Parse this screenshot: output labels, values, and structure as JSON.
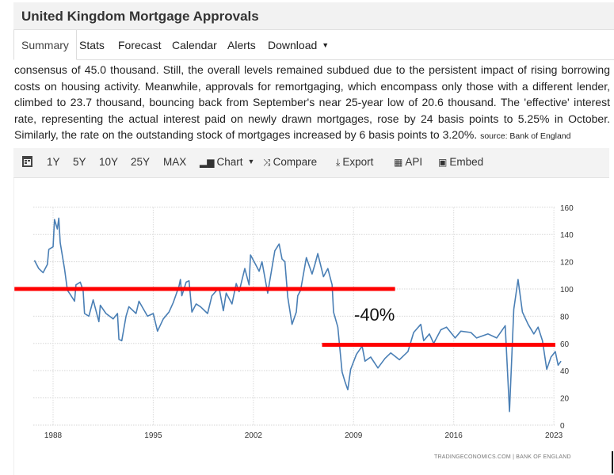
{
  "header": {
    "title": "United Kingdom Mortgage Approvals"
  },
  "tabs": [
    {
      "label": "Summary",
      "active": true
    },
    {
      "label": "Stats"
    },
    {
      "label": "Forecast"
    },
    {
      "label": "Calendar"
    },
    {
      "label": "Alerts"
    },
    {
      "label": "Download",
      "dropdown": true
    }
  ],
  "summary": {
    "text": "consensus of 45.0 thousand. Still, the overall levels remained subdued due to the persistent impact of rising borrowing costs on housing activity. Meanwhile, approvals for remortgaging, which encompass only those with a different lender, climbed to 23.7 thousand, bouncing back from September's near 25-year low of 20.6 thousand. The 'effective' interest rate, representing the actual interest paid on newly drawn mortgages, rose by 24 basis points to 5.25% in October. Similarly, the rate on the outstanding stock of mortgages increased by 6 basis points to 3.20%.",
    "source": "source: Bank of England"
  },
  "toolbar": {
    "calendar_icon": "calendar-icon",
    "ranges": [
      "1Y",
      "5Y",
      "10Y",
      "25Y",
      "MAX"
    ],
    "chart_label": "Chart",
    "compare_label": "Compare",
    "export_label": "Export",
    "api_label": "API",
    "embed_label": "Embed"
  },
  "chart_data": {
    "type": "line",
    "title": "",
    "xlabel": "",
    "ylabel": "",
    "x_ticks": [
      "1988",
      "1995",
      "2002",
      "2009",
      "2016",
      "2023"
    ],
    "y_ticks": [
      "0",
      "20",
      "40",
      "60",
      "80",
      "100",
      "120",
      "140",
      "160"
    ],
    "ylim": [
      0,
      160
    ],
    "xlim": [
      1986.5,
      2023.6
    ],
    "grid": true,
    "y_axis_side": "right",
    "line_color": "#4a7fb5",
    "footer": "TRADINGECONOMICS.COM | BANK OF ENGLAND",
    "series": [
      {
        "points": [
          [
            1986.7,
            121
          ],
          [
            1987.0,
            115
          ],
          [
            1987.3,
            112
          ],
          [
            1987.6,
            118
          ],
          [
            1987.7,
            129
          ],
          [
            1988.0,
            131
          ],
          [
            1988.1,
            151
          ],
          [
            1988.3,
            144
          ],
          [
            1988.4,
            152
          ],
          [
            1988.5,
            134
          ],
          [
            1988.8,
            115
          ],
          [
            1989.0,
            99
          ],
          [
            1989.2,
            96
          ],
          [
            1989.5,
            91
          ],
          [
            1989.6,
            103
          ],
          [
            1989.9,
            105
          ],
          [
            1990.1,
            99
          ],
          [
            1990.2,
            82
          ],
          [
            1990.5,
            80
          ],
          [
            1990.8,
            92
          ],
          [
            1991.2,
            76
          ],
          [
            1991.3,
            88
          ],
          [
            1991.7,
            82
          ],
          [
            1992.2,
            78
          ],
          [
            1992.5,
            82
          ],
          [
            1992.6,
            63
          ],
          [
            1992.8,
            62
          ],
          [
            1993.1,
            80
          ],
          [
            1993.3,
            87
          ],
          [
            1993.8,
            82
          ],
          [
            1994.0,
            91
          ],
          [
            1994.6,
            80
          ],
          [
            1995.0,
            82
          ],
          [
            1995.3,
            69
          ],
          [
            1995.7,
            78
          ],
          [
            1996.1,
            83
          ],
          [
            1996.4,
            90
          ],
          [
            1996.8,
            102
          ],
          [
            1996.9,
            107
          ],
          [
            1997.0,
            95
          ],
          [
            1997.3,
            105
          ],
          [
            1997.5,
            106
          ],
          [
            1997.7,
            83
          ],
          [
            1998.0,
            89
          ],
          [
            1998.3,
            87
          ],
          [
            1998.8,
            82
          ],
          [
            1999.1,
            95
          ],
          [
            1999.6,
            101
          ],
          [
            1999.9,
            84
          ],
          [
            2000.1,
            97
          ],
          [
            2000.5,
            89
          ],
          [
            2000.8,
            104
          ],
          [
            2001.0,
            98
          ],
          [
            2001.4,
            115
          ],
          [
            2001.7,
            103
          ],
          [
            2001.8,
            125
          ],
          [
            2002.2,
            117
          ],
          [
            2002.4,
            113
          ],
          [
            2002.6,
            120
          ],
          [
            2003.0,
            97
          ],
          [
            2003.5,
            128
          ],
          [
            2003.8,
            133
          ],
          [
            2004.0,
            122
          ],
          [
            2004.2,
            120
          ],
          [
            2004.4,
            94
          ],
          [
            2004.7,
            74
          ],
          [
            2005.0,
            83
          ],
          [
            2005.1,
            95
          ],
          [
            2005.3,
            99
          ],
          [
            2005.7,
            123
          ],
          [
            2006.1,
            111
          ],
          [
            2006.3,
            118
          ],
          [
            2006.5,
            126
          ],
          [
            2006.9,
            109
          ],
          [
            2007.2,
            115
          ],
          [
            2007.5,
            103
          ],
          [
            2007.6,
            83
          ],
          [
            2007.9,
            72
          ],
          [
            2008.2,
            39
          ],
          [
            2008.4,
            32
          ],
          [
            2008.6,
            26
          ],
          [
            2008.8,
            41
          ],
          [
            2009.2,
            52
          ],
          [
            2009.6,
            58
          ],
          [
            2009.8,
            47
          ],
          [
            2010.2,
            50
          ],
          [
            2010.7,
            42
          ],
          [
            2011.2,
            49
          ],
          [
            2011.6,
            53
          ],
          [
            2012.2,
            48
          ],
          [
            2012.8,
            54
          ],
          [
            2013.2,
            68
          ],
          [
            2013.7,
            74
          ],
          [
            2013.9,
            62
          ],
          [
            2014.3,
            67
          ],
          [
            2014.6,
            60
          ],
          [
            2015.1,
            70
          ],
          [
            2015.5,
            72
          ],
          [
            2016.1,
            64
          ],
          [
            2016.5,
            69
          ],
          [
            2017.2,
            68
          ],
          [
            2017.6,
            64
          ],
          [
            2018.4,
            67
          ],
          [
            2019.0,
            64
          ],
          [
            2019.6,
            73
          ],
          [
            2019.9,
            10
          ],
          [
            2020.2,
            85
          ],
          [
            2020.5,
            107
          ],
          [
            2020.8,
            83
          ],
          [
            2021.2,
            74
          ],
          [
            2021.6,
            67
          ],
          [
            2021.9,
            72
          ],
          [
            2022.2,
            62
          ],
          [
            2022.5,
            41
          ],
          [
            2022.8,
            50
          ],
          [
            2023.1,
            54
          ],
          [
            2023.3,
            44
          ],
          [
            2023.5,
            47
          ]
        ]
      }
    ],
    "annotations": {
      "level_lines": [
        {
          "value": 100,
          "from": 1985.3,
          "to": 2011.9,
          "color": "#ff0000"
        },
        {
          "value": 59,
          "from": 2006.8,
          "to": 2023.1,
          "color": "#ff0000"
        }
      ],
      "label": "-40%"
    }
  }
}
